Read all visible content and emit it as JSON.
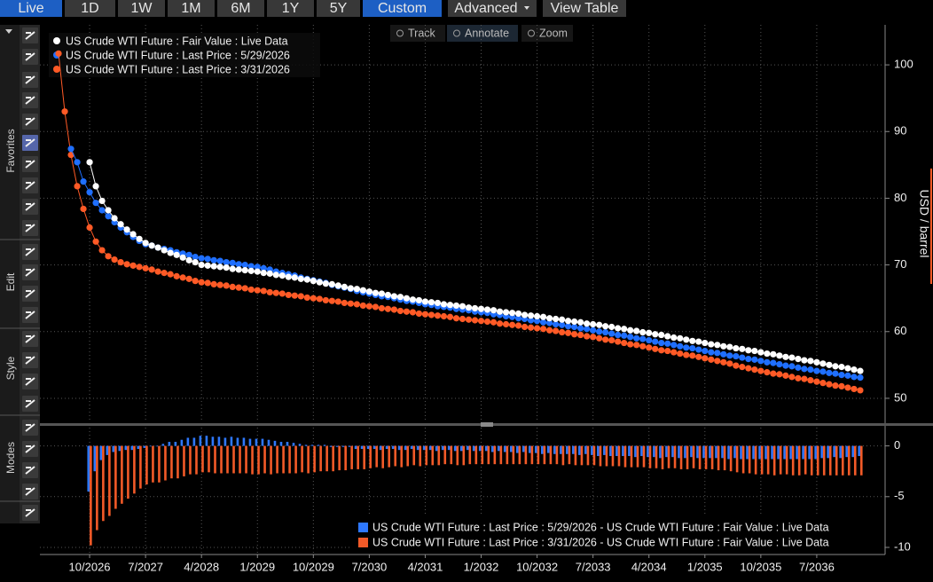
{
  "toolbar": {
    "buttons": [
      "Live",
      "1D",
      "1W",
      "1M",
      "6M",
      "1Y",
      "5Y",
      "Custom",
      "Advanced",
      "View Table"
    ]
  },
  "side_panel": {
    "sections": [
      "Favorites",
      "Edit",
      "Style",
      "Modes"
    ]
  },
  "chart_tools": [
    "Track",
    "Annotate",
    "Zoom"
  ],
  "chart_data": [
    {
      "type": "line",
      "markers": true,
      "grid": true,
      "y_axis_label": "USD / barrel",
      "x": [
        "2026-05",
        "2026-06",
        "2026-07",
        "2026-08",
        "2026-09",
        "2026-10",
        "2026-11",
        "2026-12",
        "2027-01",
        "2027-02",
        "2027-03",
        "2027-04",
        "2027-05",
        "2027-06",
        "2027-07",
        "2027-08",
        "2027-09",
        "2027-10",
        "2027-11",
        "2027-12",
        "2028-01",
        "2028-02",
        "2028-03",
        "2028-04",
        "2028-05",
        "2028-06",
        "2028-07",
        "2028-08",
        "2028-09",
        "2028-10",
        "2028-11",
        "2028-12",
        "2029-01",
        "2029-02",
        "2029-03",
        "2029-04",
        "2029-05",
        "2029-06",
        "2029-07",
        "2029-08",
        "2029-09",
        "2029-10",
        "2029-11",
        "2029-12",
        "2030-01",
        "2030-02",
        "2030-03",
        "2030-04",
        "2030-05",
        "2030-06",
        "2030-07",
        "2030-08",
        "2030-09",
        "2030-10",
        "2030-11",
        "2030-12",
        "2031-01",
        "2031-02",
        "2031-03",
        "2031-04",
        "2031-05",
        "2031-06",
        "2031-07",
        "2031-08",
        "2031-09",
        "2031-10",
        "2031-11",
        "2031-12",
        "2032-01",
        "2032-02",
        "2032-03",
        "2032-04",
        "2032-05",
        "2032-06",
        "2032-07",
        "2032-08",
        "2032-09",
        "2032-10",
        "2032-11",
        "2032-12",
        "2033-01",
        "2033-02",
        "2033-03",
        "2033-04",
        "2033-05",
        "2033-06",
        "2033-07",
        "2033-08",
        "2033-09",
        "2033-10",
        "2033-11",
        "2033-12",
        "2034-01",
        "2034-02",
        "2034-03",
        "2034-04",
        "2034-05",
        "2034-06",
        "2034-07",
        "2034-08",
        "2034-09",
        "2034-10",
        "2034-11",
        "2034-12",
        "2035-01",
        "2035-02",
        "2035-03",
        "2035-04",
        "2035-05",
        "2035-06",
        "2035-07",
        "2035-08",
        "2035-09",
        "2035-10",
        "2035-11",
        "2035-12",
        "2036-01",
        "2036-02",
        "2036-03",
        "2036-04",
        "2036-05",
        "2036-06",
        "2036-07",
        "2036-08",
        "2036-09",
        "2036-10",
        "2036-11",
        "2036-12",
        "2037-01",
        "2037-02"
      ],
      "xlim": [
        "2026-02",
        "2037-06"
      ],
      "ylim": [
        46.4,
        106
      ],
      "yticks": [
        50,
        60,
        70,
        80,
        90,
        100
      ],
      "series": [
        {
          "name": "US Crude WTI Future : Fair Value : Live Data",
          "color": "#ffffff",
          "values": [
            null,
            null,
            null,
            null,
            null,
            85.4,
            81.8,
            79.6,
            78.2,
            77.0,
            76.1,
            75.3,
            74.6,
            73.9,
            73.3,
            72.9,
            72.6,
            72.2,
            71.8,
            71.5,
            71.1,
            70.7,
            70.4,
            70.0,
            69.9,
            69.8,
            69.7,
            69.6,
            69.4,
            69.3,
            69.2,
            69.1,
            69.0,
            68.8,
            68.7,
            68.5,
            68.4,
            68.2,
            68.1,
            67.9,
            67.8,
            67.6,
            67.4,
            67.2,
            67.1,
            66.9,
            66.7,
            66.5,
            66.4,
            66.2,
            66.0,
            65.8,
            65.7,
            65.5,
            65.3,
            65.2,
            65.0,
            64.8,
            64.7,
            64.5,
            64.4,
            64.3,
            64.1,
            64.0,
            63.9,
            63.8,
            63.6,
            63.5,
            63.4,
            63.3,
            63.2,
            63.0,
            62.9,
            62.8,
            62.7,
            62.5,
            62.4,
            62.3,
            62.2,
            62.0,
            61.9,
            61.8,
            61.6,
            61.5,
            61.4,
            61.2,
            61.1,
            61.0,
            60.8,
            60.7,
            60.5,
            60.4,
            60.2,
            60.1,
            59.9,
            59.8,
            59.6,
            59.5,
            59.3,
            59.1,
            59.0,
            58.8,
            58.6,
            58.5,
            58.3,
            58.1,
            58.0,
            57.8,
            57.7,
            57.5,
            57.4,
            57.2,
            57.1,
            56.9,
            56.7,
            56.6,
            56.4,
            56.2,
            56.1,
            55.9,
            55.7,
            55.6,
            55.4,
            55.2,
            55.0,
            54.8,
            54.7,
            54.5,
            54.3,
            54.1
          ]
        },
        {
          "name": "US Crude WTI Future : Last Price : 5/29/2026",
          "color": "#1f6fff",
          "values": [
            null,
            null,
            87.4,
            85.4,
            82.5,
            80.9,
            79.3,
            78.2,
            77.3,
            76.4,
            75.6,
            74.9,
            74.2,
            73.6,
            73.1,
            72.9,
            72.6,
            72.4,
            72.2,
            71.9,
            71.7,
            71.5,
            71.2,
            71.0,
            70.9,
            70.7,
            70.6,
            70.4,
            70.3,
            70.1,
            70.0,
            69.8,
            69.7,
            69.5,
            69.3,
            69.0,
            68.8,
            68.6,
            68.4,
            68.1,
            67.9,
            67.7,
            67.5,
            67.3,
            67.0,
            66.8,
            66.6,
            66.4,
            66.1,
            65.9,
            65.7,
            65.5,
            65.3,
            65.2,
            65.0,
            64.8,
            64.6,
            64.5,
            64.3,
            64.1,
            64.0,
            63.8,
            63.7,
            63.6,
            63.4,
            63.3,
            63.2,
            63.0,
            62.9,
            62.8,
            62.6,
            62.5,
            62.3,
            62.2,
            62.0,
            61.9,
            61.7,
            61.6,
            61.4,
            61.3,
            61.1,
            61.0,
            60.8,
            60.7,
            60.5,
            60.4,
            60.2,
            60.0,
            59.9,
            59.7,
            59.5,
            59.4,
            59.2,
            59.0,
            58.9,
            58.7,
            58.5,
            58.3,
            58.2,
            58.0,
            57.8,
            57.6,
            57.5,
            57.3,
            57.1,
            56.9,
            56.8,
            56.6,
            56.4,
            56.3,
            56.1,
            55.9,
            55.8,
            55.6,
            55.4,
            55.3,
            55.1,
            54.9,
            54.8,
            54.6,
            54.4,
            54.3,
            54.1,
            54.0,
            53.8,
            53.7,
            53.5,
            53.4,
            53.2,
            53.1
          ]
        },
        {
          "name": "US Crude WTI Future : Last Price : 3/31/2026",
          "color": "#ff5a26",
          "values": [
            101.7,
            93.0,
            86.5,
            81.8,
            78.4,
            75.6,
            73.5,
            72.2,
            71.3,
            70.8,
            70.4,
            70.1,
            69.9,
            69.7,
            69.5,
            69.3,
            69.0,
            68.8,
            68.6,
            68.3,
            68.1,
            67.9,
            67.6,
            67.4,
            67.3,
            67.1,
            67.0,
            66.9,
            66.7,
            66.6,
            66.5,
            66.3,
            66.2,
            66.1,
            65.9,
            65.8,
            65.7,
            65.5,
            65.4,
            65.3,
            65.1,
            65.0,
            64.9,
            64.7,
            64.6,
            64.5,
            64.3,
            64.2,
            64.1,
            63.9,
            63.8,
            63.7,
            63.5,
            63.4,
            63.3,
            63.1,
            63.0,
            62.9,
            62.7,
            62.6,
            62.5,
            62.4,
            62.3,
            62.2,
            62.0,
            61.9,
            61.8,
            61.7,
            61.6,
            61.5,
            61.4,
            61.2,
            61.1,
            61.0,
            60.9,
            60.7,
            60.6,
            60.5,
            60.4,
            60.2,
            60.1,
            59.9,
            59.8,
            59.6,
            59.5,
            59.3,
            59.2,
            59.0,
            58.8,
            58.7,
            58.5,
            58.3,
            58.1,
            58.0,
            57.8,
            57.6,
            57.4,
            57.2,
            57.1,
            56.9,
            56.7,
            56.5,
            56.4,
            56.2,
            56.0,
            55.8,
            55.6,
            55.4,
            55.2,
            54.9,
            54.7,
            54.5,
            54.3,
            54.1,
            53.9,
            53.7,
            53.6,
            53.4,
            53.2,
            53.0,
            52.9,
            52.7,
            52.5,
            52.3,
            52.1,
            51.9,
            51.8,
            51.6,
            51.4,
            51.2
          ]
        }
      ]
    },
    {
      "type": "bar",
      "grid": true,
      "x": [
        "2026-10",
        "2026-11",
        "2026-12",
        "2027-01",
        "2027-02",
        "2027-03",
        "2027-04",
        "2027-05",
        "2027-06",
        "2027-07",
        "2027-08",
        "2027-09",
        "2027-10",
        "2027-11",
        "2027-12",
        "2028-01",
        "2028-02",
        "2028-03",
        "2028-04",
        "2028-05",
        "2028-06",
        "2028-07",
        "2028-08",
        "2028-09",
        "2028-10",
        "2028-11",
        "2028-12",
        "2029-01",
        "2029-02",
        "2029-03",
        "2029-04",
        "2029-05",
        "2029-06",
        "2029-07",
        "2029-08",
        "2029-09",
        "2029-10",
        "2029-11",
        "2029-12",
        "2030-01",
        "2030-02",
        "2030-03",
        "2030-04",
        "2030-05",
        "2030-06",
        "2030-07",
        "2030-08",
        "2030-09",
        "2030-10",
        "2030-11",
        "2030-12",
        "2031-01",
        "2031-02",
        "2031-03",
        "2031-04",
        "2031-05",
        "2031-06",
        "2031-07",
        "2031-08",
        "2031-09",
        "2031-10",
        "2031-11",
        "2031-12",
        "2032-01",
        "2032-02",
        "2032-03",
        "2032-04",
        "2032-05",
        "2032-06",
        "2032-07",
        "2032-08",
        "2032-09",
        "2032-10",
        "2032-11",
        "2032-12",
        "2033-01",
        "2033-02",
        "2033-03",
        "2033-04",
        "2033-05",
        "2033-06",
        "2033-07",
        "2033-08",
        "2033-09",
        "2033-10",
        "2033-11",
        "2033-12",
        "2034-01",
        "2034-02",
        "2034-03",
        "2034-04",
        "2034-05",
        "2034-06",
        "2034-07",
        "2034-08",
        "2034-09",
        "2034-10",
        "2034-11",
        "2034-12",
        "2035-01",
        "2035-02",
        "2035-03",
        "2035-04",
        "2035-05",
        "2035-06",
        "2035-07",
        "2035-08",
        "2035-09",
        "2035-10",
        "2035-11",
        "2035-12",
        "2036-01",
        "2036-02",
        "2036-03",
        "2036-04",
        "2036-05",
        "2036-06",
        "2036-07",
        "2036-08",
        "2036-09",
        "2036-10",
        "2036-11",
        "2036-12",
        "2037-01",
        "2037-02"
      ],
      "xlim": [
        "2026-02",
        "2037-06"
      ],
      "xticks": [
        {
          "value": "2026-10",
          "label": "10/2026"
        },
        {
          "value": "2027-07",
          "label": "7/2027"
        },
        {
          "value": "2028-04",
          "label": "4/2028"
        },
        {
          "value": "2029-01",
          "label": "1/2029"
        },
        {
          "value": "2029-10",
          "label": "10/2029"
        },
        {
          "value": "2030-07",
          "label": "7/2030"
        },
        {
          "value": "2031-04",
          "label": "4/2031"
        },
        {
          "value": "2032-01",
          "label": "1/2032"
        },
        {
          "value": "2032-10",
          "label": "10/2032"
        },
        {
          "value": "2033-07",
          "label": "7/2033"
        },
        {
          "value": "2034-04",
          "label": "4/2034"
        },
        {
          "value": "2035-01",
          "label": "1/2035"
        },
        {
          "value": "2035-10",
          "label": "10/2035"
        },
        {
          "value": "2036-07",
          "label": "7/2036"
        }
      ],
      "ylim": [
        -10.7,
        1.8
      ],
      "yticks": [
        -10,
        -5,
        0
      ],
      "series": [
        {
          "name": "US Crude WTI Future : Last Price : 5/29/2026 - US Crude WTI Future : Fair Value : Live Data",
          "color": "#2e78ff",
          "values": [
            -4.5,
            -2.5,
            -1.4,
            -0.9,
            -0.6,
            -0.5,
            -0.4,
            -0.4,
            -0.3,
            -0.2,
            0,
            0,
            0.2,
            0.4,
            0.4,
            0.6,
            0.8,
            0.8,
            1.0,
            1.0,
            0.9,
            0.9,
            0.8,
            0.9,
            0.8,
            0.8,
            0.7,
            0.7,
            0.7,
            0.6,
            0.5,
            0.4,
            0.4,
            0.3,
            0.2,
            0.1,
            0.1,
            0.1,
            0.1,
            -0.1,
            -0.1,
            -0.1,
            -0.1,
            -0.3,
            -0.3,
            -0.3,
            -0.3,
            -0.4,
            -0.3,
            -0.3,
            -0.4,
            -0.4,
            -0.3,
            -0.4,
            -0.4,
            -0.4,
            -0.5,
            -0.4,
            -0.4,
            -0.5,
            -0.5,
            -0.4,
            -0.5,
            -0.5,
            -0.5,
            -0.6,
            -0.5,
            -0.6,
            -0.6,
            -0.7,
            -0.6,
            -0.7,
            -0.7,
            -0.8,
            -0.7,
            -0.8,
            -0.8,
            -0.8,
            -0.8,
            -0.9,
            -0.8,
            -0.9,
            -1.0,
            -0.9,
            -1.0,
            -1.0,
            -1.0,
            -1.0,
            -1.1,
            -1.0,
            -1.1,
            -1.1,
            -1.2,
            -1.1,
            -1.1,
            -1.2,
            -1.2,
            -1.1,
            -1.2,
            -1.2,
            -1.2,
            -1.2,
            -1.2,
            -1.3,
            -1.2,
            -1.3,
            -1.3,
            -1.3,
            -1.3,
            -1.3,
            -1.3,
            -1.3,
            -1.3,
            -1.3,
            -1.3,
            -1.3,
            -1.3,
            -1.3,
            -1.2,
            -1.2,
            -1.1,
            -1.2,
            -1.1,
            -1.1,
            -1.0
          ]
        },
        {
          "name": "US Crude WTI Future : Last Price : 3/31/2026 - US Crude WTI Future : Fair Value : Live Data",
          "color": "#f25a28",
          "values": [
            -9.8,
            -8.3,
            -7.4,
            -6.9,
            -6.2,
            -5.7,
            -5.2,
            -4.7,
            -4.2,
            -3.8,
            -3.6,
            -3.6,
            -3.4,
            -3.2,
            -3.2,
            -3.0,
            -2.8,
            -2.8,
            -2.6,
            -2.6,
            -2.7,
            -2.7,
            -2.7,
            -2.7,
            -2.7,
            -2.7,
            -2.8,
            -2.8,
            -2.7,
            -2.8,
            -2.7,
            -2.7,
            -2.7,
            -2.7,
            -2.6,
            -2.7,
            -2.6,
            -2.5,
            -2.5,
            -2.5,
            -2.4,
            -2.4,
            -2.3,
            -2.3,
            -2.3,
            -2.2,
            -2.1,
            -2.2,
            -2.1,
            -2.0,
            -2.1,
            -2.0,
            -1.9,
            -2.0,
            -1.9,
            -1.9,
            -1.9,
            -1.8,
            -1.8,
            -1.9,
            -1.9,
            -1.8,
            -1.8,
            -1.8,
            -1.8,
            -1.8,
            -1.8,
            -1.8,
            -1.8,
            -1.8,
            -1.8,
            -1.8,
            -1.8,
            -1.8,
            -1.8,
            -1.8,
            -1.9,
            -1.8,
            -1.9,
            -1.9,
            -1.9,
            -1.9,
            -2.0,
            -2.0,
            -2.0,
            -2.0,
            -2.1,
            -2.1,
            -2.1,
            -2.1,
            -2.2,
            -2.2,
            -2.3,
            -2.2,
            -2.2,
            -2.3,
            -2.3,
            -2.2,
            -2.3,
            -2.3,
            -2.3,
            -2.4,
            -2.4,
            -2.5,
            -2.6,
            -2.7,
            -2.7,
            -2.8,
            -2.8,
            -2.8,
            -2.9,
            -2.8,
            -2.8,
            -2.9,
            -2.9,
            -2.8,
            -2.9,
            -2.9,
            -2.9,
            -2.9,
            -2.9,
            -2.9,
            -2.9,
            -2.9,
            -2.9
          ]
        }
      ]
    }
  ]
}
